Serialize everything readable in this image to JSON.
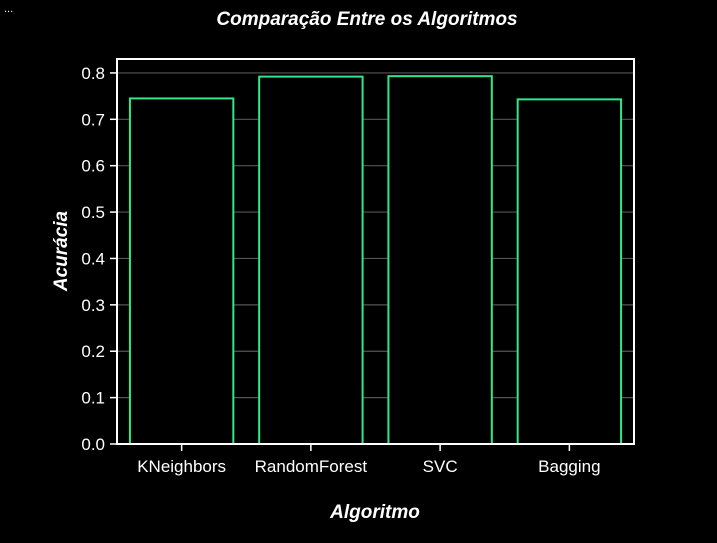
{
  "corner_text": "...",
  "chart_data": {
    "type": "bar",
    "title": "Comparação Entre os Algoritmos",
    "xlabel": "Algoritmo",
    "ylabel": "Acurácia",
    "categories": [
      "KNeighbors",
      "RandomForest",
      "SVC",
      "Bagging"
    ],
    "values": [
      0.745,
      0.792,
      0.793,
      0.743
    ],
    "ylim": [
      0,
      0.83
    ],
    "yticks": [
      "0.0",
      "0.1",
      "0.2",
      "0.3",
      "0.4",
      "0.5",
      "0.6",
      "0.7",
      "0.8"
    ],
    "grid": true,
    "colors": {
      "background": "#000000",
      "bar_fill": "#000000",
      "bar_edge": "#2ee88a",
      "grid": "#555555",
      "axes": "#ffffff",
      "text": "#ffffff"
    }
  }
}
